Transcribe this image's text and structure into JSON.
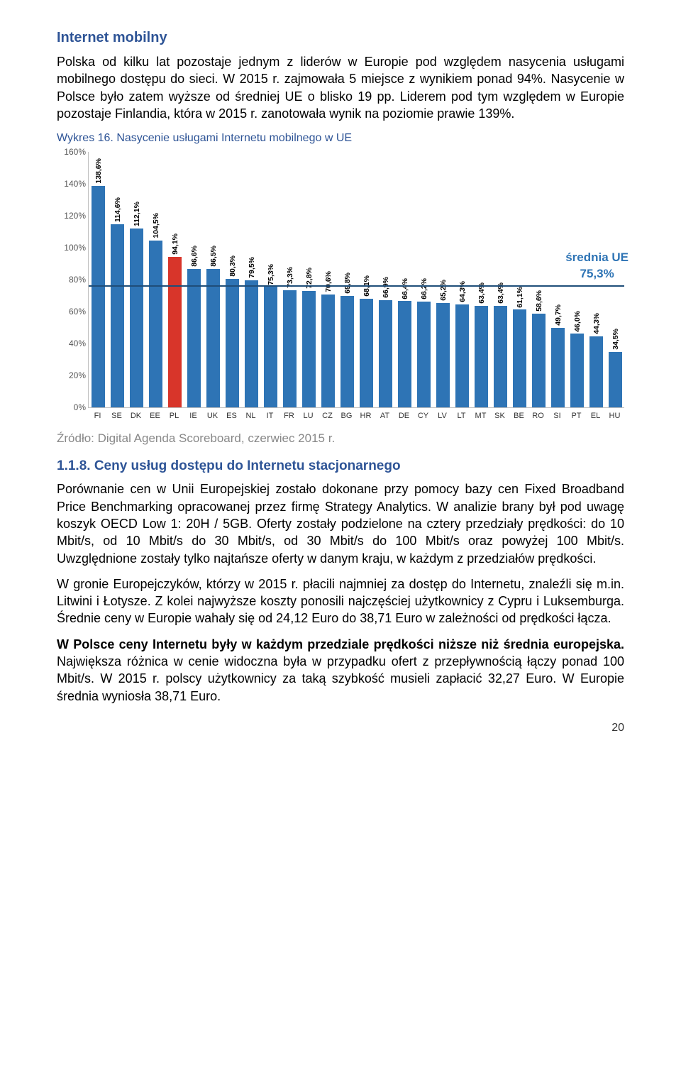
{
  "h1": "Internet mobilny",
  "p1": "Polska od kilku lat pozostaje jednym z liderów w Europie pod względem nasycenia usługami mobilnego dostępu do sieci. W 2015 r. zajmowała 5 miejsce z wynikiem ponad 94%. Nasycenie w Polsce było zatem wyższe od średniej UE o blisko 19 pp. Liderem pod tym względem w Europie pozostaje Finlandia, która w 2015 r. zanotowała wynik na poziomie prawie 139%.",
  "chart_title": "Wykres 16. Nasycenie usługami Internetu mobilnego w UE",
  "chart": {
    "ylim": [
      0,
      160
    ],
    "ytick_step": 20,
    "bar_color": "#2e74b5",
    "highlight_color": "#d8352a",
    "highlight_index": 4,
    "avg_value": 75.3,
    "avg_label_top": "średnia UE",
    "avg_label_bot": "75,3%",
    "avg_color": "#1f4e79",
    "avg_label_color": "#2e74b5",
    "series": [
      {
        "cc": "FI",
        "val": 138.6,
        "lbl": "138,6%"
      },
      {
        "cc": "SE",
        "val": 114.6,
        "lbl": "114,6%"
      },
      {
        "cc": "DK",
        "val": 112.1,
        "lbl": "112,1%"
      },
      {
        "cc": "EE",
        "val": 104.5,
        "lbl": "104,5%"
      },
      {
        "cc": "PL",
        "val": 94.1,
        "lbl": "94,1%"
      },
      {
        "cc": "IE",
        "val": 86.6,
        "lbl": "86,6%"
      },
      {
        "cc": "UK",
        "val": 86.5,
        "lbl": "86,5%"
      },
      {
        "cc": "ES",
        "val": 80.3,
        "lbl": "80,3%"
      },
      {
        "cc": "NL",
        "val": 79.5,
        "lbl": "79,5%"
      },
      {
        "cc": "IT",
        "val": 75.3,
        "lbl": "75,3%"
      },
      {
        "cc": "FR",
        "val": 73.3,
        "lbl": "73,3%"
      },
      {
        "cc": "LU",
        "val": 72.8,
        "lbl": "72,8%"
      },
      {
        "cc": "CZ",
        "val": 70.6,
        "lbl": "70,6%"
      },
      {
        "cc": "BG",
        "val": 69.8,
        "lbl": "69,8%"
      },
      {
        "cc": "HR",
        "val": 68.1,
        "lbl": "68,1%"
      },
      {
        "cc": "AT",
        "val": 66.9,
        "lbl": "66,9%"
      },
      {
        "cc": "DE",
        "val": 66.4,
        "lbl": "66,4%"
      },
      {
        "cc": "CY",
        "val": 66.2,
        "lbl": "66,2%"
      },
      {
        "cc": "LV",
        "val": 65.2,
        "lbl": "65,2%"
      },
      {
        "cc": "LT",
        "val": 64.3,
        "lbl": "64,3%"
      },
      {
        "cc": "MT",
        "val": 63.4,
        "lbl": "63,4%"
      },
      {
        "cc": "SK",
        "val": 63.4,
        "lbl": "63,4%"
      },
      {
        "cc": "BE",
        "val": 61.1,
        "lbl": "61,1%"
      },
      {
        "cc": "RO",
        "val": 58.6,
        "lbl": "58,6%"
      },
      {
        "cc": "SI",
        "val": 49.7,
        "lbl": "49,7%"
      },
      {
        "cc": "PT",
        "val": 46.0,
        "lbl": "46,0%"
      },
      {
        "cc": "EL",
        "val": 44.3,
        "lbl": "44,3%"
      },
      {
        "cc": "HU",
        "val": 34.5,
        "lbl": "34,5%"
      }
    ]
  },
  "source": "Źródło: Digital Agenda Scoreboard, czerwiec 2015 r.",
  "h2": "1.1.8. Ceny usług dostępu do Internetu stacjonarnego",
  "p2": "Porównanie cen w Unii Europejskiej zostało dokonane przy pomocy bazy cen Fixed Broadband Price Benchmarking opracowanej przez firmę Strategy Analytics. W analizie brany był pod uwagę koszyk OECD Low 1: 20H / 5GB. Oferty zostały podzielone na cztery przedziały prędkości: do 10 Mbit/s, od 10 Mbit/s do 30 Mbit/s, od 30 Mbit/s do 100 Mbit/s oraz powyżej 100 Mbit/s. Uwzględnione zostały tylko najtańsze oferty w danym kraju, w każdym z przedziałów prędkości.",
  "p3": "W gronie Europejczyków, którzy w 2015 r. płacili najmniej za dostęp do Internetu, znaleźli się m.in. Litwini i Łotysze. Z kolei najwyższe koszty ponosili najczęściej użytkownicy z Cypru i Luksemburga. Średnie ceny w Europie wahały się od 24,12 Euro do 38,71 Euro w zależności od prędkości łącza.",
  "p4a": "W Polsce ceny Internetu były w każdym przedziale prędkości niższe niż średnia europejska.",
  "p4b": " Największa różnica w cenie widoczna była w przypadku ofert z przepływnością łączy ponad 100 Mbit/s. W 2015 r. polscy użytkownicy za taką szybkość musieli zapłacić 32,27 Euro. W Europie średnia wyniosła 38,71 Euro.",
  "page_num": "20"
}
